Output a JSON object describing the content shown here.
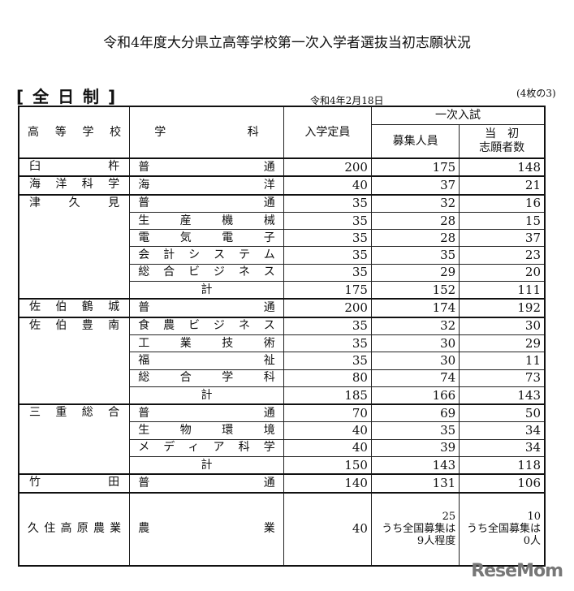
{
  "title": "令和4年度大分県立高等学校第一次入学者選抜当初志願状況",
  "section": "[ 全 日 制 ]",
  "date": "令和4年2月18日",
  "page": "(4枚の3)",
  "headers": {
    "school": "高等学校",
    "subject": "学科",
    "capacity": "入学定員",
    "first_exam": "一次入試",
    "recruit": "募集人員",
    "applicants_1": "当　初",
    "applicants_2": "志願者数"
  },
  "schools": [
    {
      "name": "臼杵",
      "rows": [
        [
          "普通",
          "200",
          "175",
          "148"
        ]
      ]
    },
    {
      "name": "海洋科学",
      "rows": [
        [
          "海洋",
          "40",
          "37",
          "21"
        ]
      ]
    },
    {
      "name": "津久見",
      "rows": [
        [
          "普通",
          "35",
          "32",
          "16"
        ],
        [
          "生産機械",
          "35",
          "28",
          "15"
        ],
        [
          "電気電子",
          "35",
          "28",
          "37"
        ],
        [
          "会計システム",
          "35",
          "35",
          "23"
        ],
        [
          "総合ビジネス",
          "35",
          "29",
          "20"
        ]
      ],
      "total": [
        "計",
        "175",
        "152",
        "111"
      ]
    },
    {
      "name": "佐伯鶴城",
      "rows": [
        [
          "普通",
          "200",
          "174",
          "192"
        ]
      ]
    },
    {
      "name": "佐伯豊南",
      "rows": [
        [
          "食農ビジネス",
          "35",
          "32",
          "30"
        ],
        [
          "工業技術",
          "35",
          "30",
          "29"
        ],
        [
          "福祉",
          "35",
          "30",
          "11"
        ],
        [
          "総合学科",
          "80",
          "74",
          "73"
        ]
      ],
      "total": [
        "計",
        "185",
        "166",
        "143"
      ]
    },
    {
      "name": "三重総合",
      "rows": [
        [
          "普通",
          "70",
          "69",
          "50"
        ],
        [
          "生物環境",
          "40",
          "35",
          "34"
        ],
        [
          "メディア科学",
          "40",
          "39",
          "34"
        ]
      ],
      "total": [
        "計",
        "150",
        "143",
        "118"
      ]
    },
    {
      "name": "竹田",
      "rows": [
        [
          "普通",
          "140",
          "131",
          "106"
        ]
      ]
    }
  ],
  "last": {
    "name": "久住高原農業",
    "subject": "農業",
    "capacity": "40",
    "recruit": [
      "25",
      "うち全国募集は",
      "9人程度"
    ],
    "applicants": [
      "10",
      "うち全国募集は",
      "0人"
    ]
  },
  "logo": "ReseMom"
}
